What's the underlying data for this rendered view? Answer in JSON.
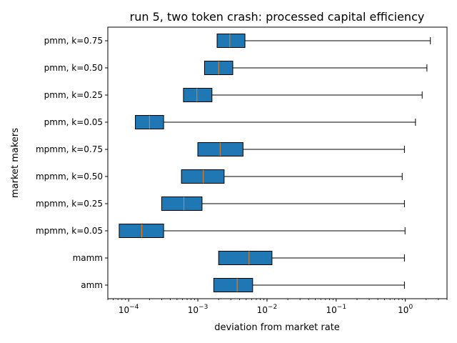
{
  "chart_data": {
    "type": "boxplot",
    "orientation": "horizontal",
    "title": "run 5, two token crash: processed capital efficiency",
    "xlabel": "deviation from market rate",
    "ylabel": "market makers",
    "xscale": "log",
    "xlim": [
      5e-05,
      4.0
    ],
    "x_ticks": [
      {
        "value": 0.0001,
        "base": "10",
        "exp": "−4"
      },
      {
        "value": 0.001,
        "base": "10",
        "exp": "−3"
      },
      {
        "value": 0.01,
        "base": "10",
        "exp": "−2"
      },
      {
        "value": 0.1,
        "base": "10",
        "exp": "−1"
      },
      {
        "value": 1,
        "base": "10",
        "exp": "0"
      }
    ],
    "grid": false,
    "legend": "none",
    "box_color": "#1f77b4",
    "median_color": "#ff7f0e",
    "categories": [
      "pmm, k=0.75",
      "pmm, k=0.50",
      "pmm, k=0.25",
      "pmm, k=0.05",
      "mpmm, k=0.75",
      "mpmm, k=0.50",
      "mpmm, k=0.25",
      "mpmm, k=0.05",
      "mamm",
      "amm"
    ],
    "boxes": [
      {
        "label": "pmm, k=0.75",
        "whislo": 0.0019,
        "q1": 0.0019,
        "med": 0.0029,
        "q3": 0.0048,
        "whishi": 2.3
      },
      {
        "label": "pmm, k=0.50",
        "whislo": 0.00125,
        "q1": 0.00125,
        "med": 0.002,
        "q3": 0.0032,
        "whishi": 2.05
      },
      {
        "label": "pmm, k=0.25",
        "whislo": 0.00062,
        "q1": 0.00062,
        "med": 0.00097,
        "q3": 0.0016,
        "whishi": 1.75
      },
      {
        "label": "pmm, k=0.05",
        "whislo": 0.000125,
        "q1": 0.000125,
        "med": 0.0002,
        "q3": 0.00032,
        "whishi": 1.4
      },
      {
        "label": "mpmm, k=0.75",
        "whislo": 0.001,
        "q1": 0.001,
        "med": 0.0021,
        "q3": 0.0045,
        "whishi": 0.97
      },
      {
        "label": "mpmm, k=0.50",
        "whislo": 0.00058,
        "q1": 0.00058,
        "med": 0.0012,
        "q3": 0.0024,
        "whishi": 0.9
      },
      {
        "label": "mpmm, k=0.25",
        "whislo": 0.0003,
        "q1": 0.0003,
        "med": 0.00063,
        "q3": 0.00115,
        "whishi": 0.97
      },
      {
        "label": "mpmm, k=0.05",
        "whislo": 7.3e-05,
        "q1": 7.3e-05,
        "med": 0.000155,
        "q3": 0.00032,
        "whishi": 0.99
      },
      {
        "label": "mamm",
        "whislo": 0.002,
        "q1": 0.002,
        "med": 0.0055,
        "q3": 0.0118,
        "whishi": 0.97
      },
      {
        "label": "amm",
        "whislo": 0.0017,
        "q1": 0.0017,
        "med": 0.0037,
        "q3": 0.0062,
        "whishi": 0.97
      }
    ]
  }
}
